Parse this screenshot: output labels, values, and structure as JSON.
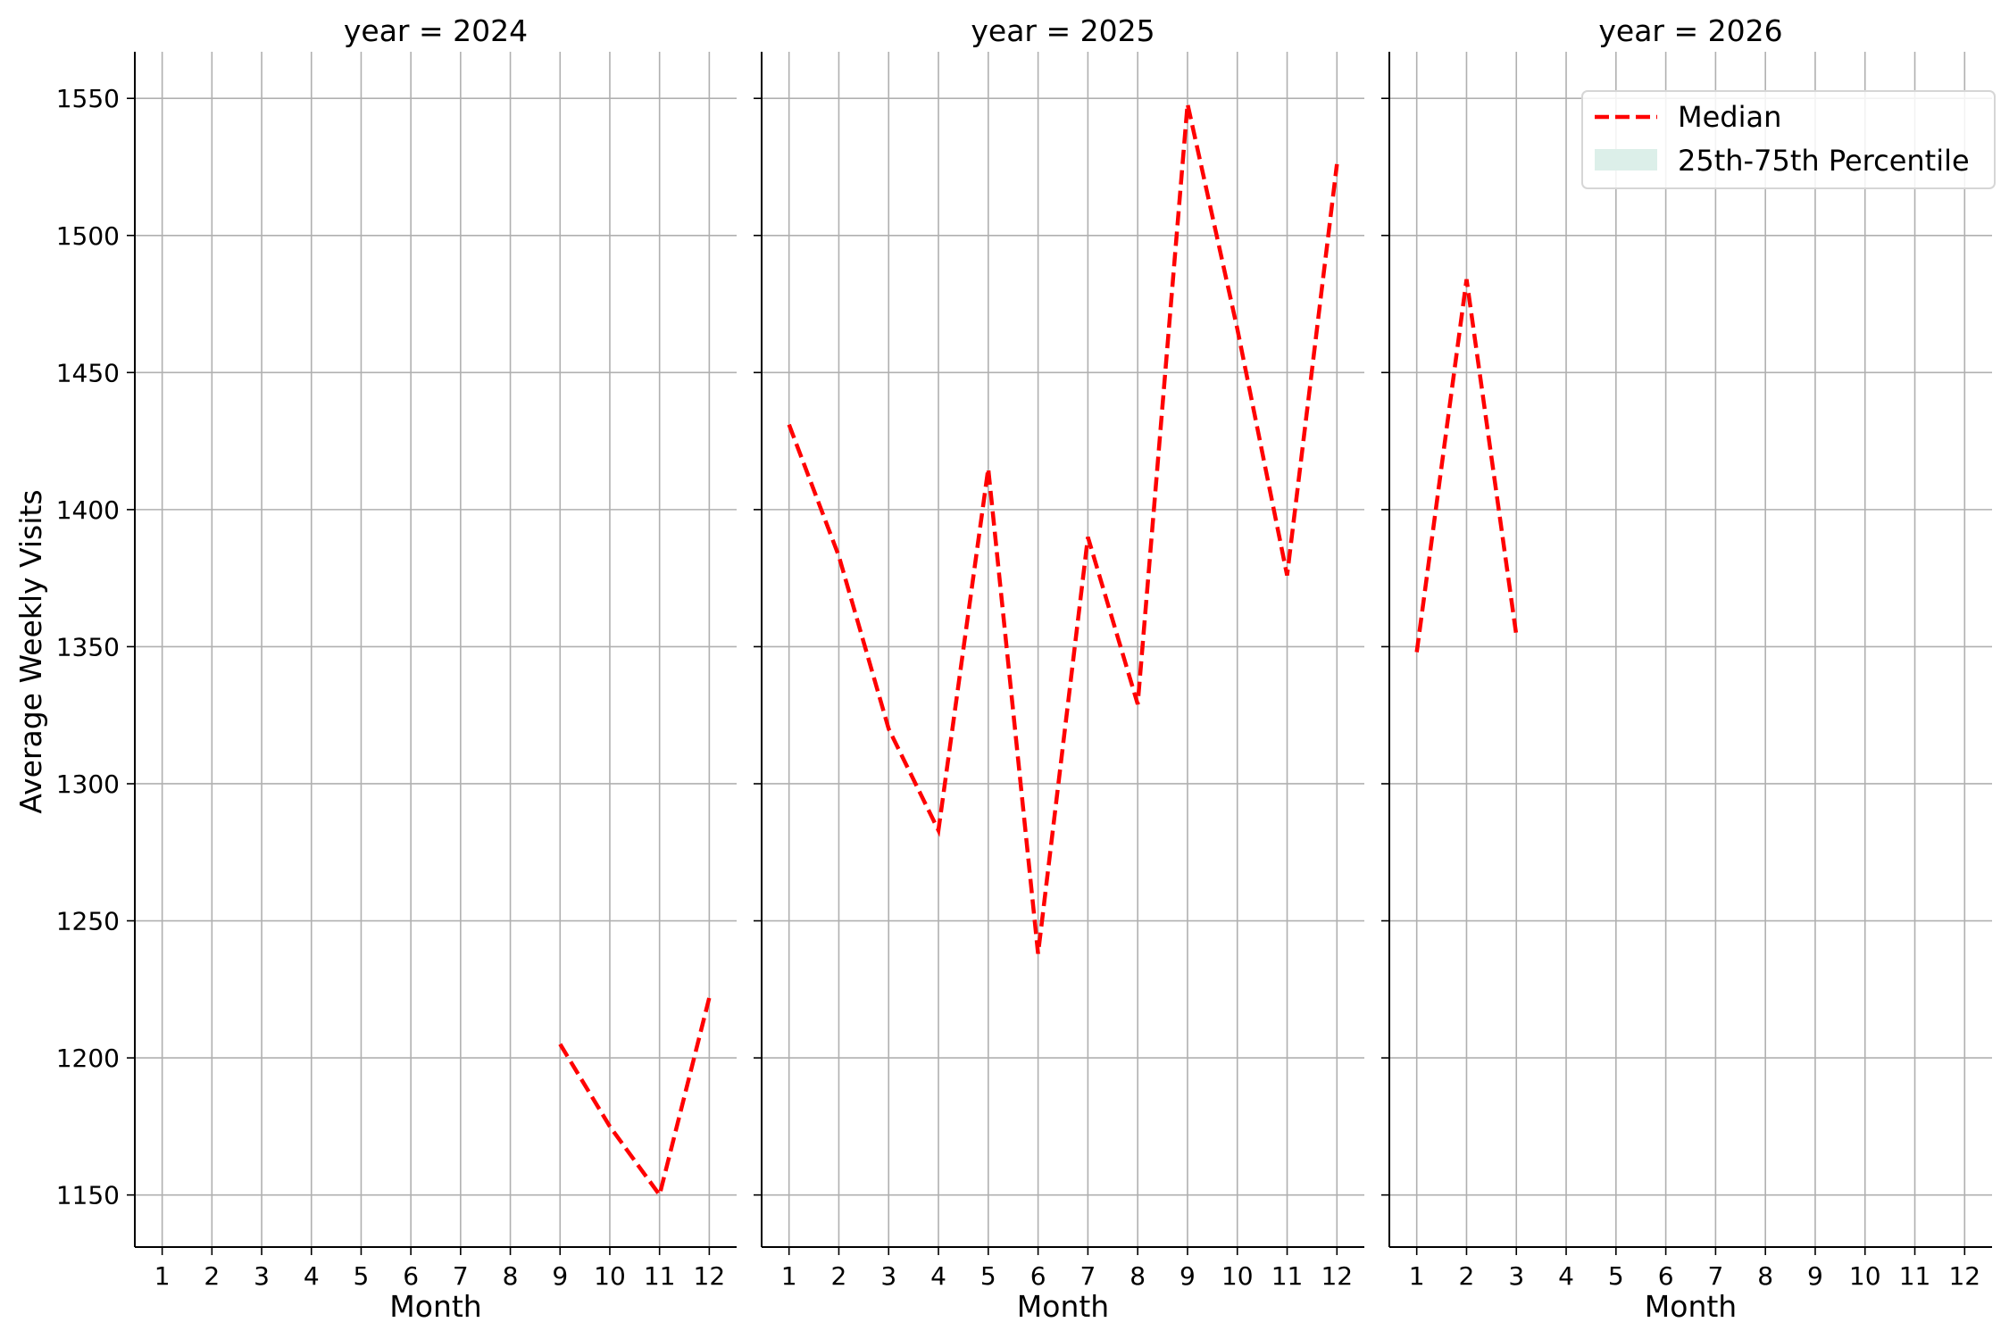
{
  "chart_data": {
    "type": "line",
    "ylabel": "Average Weekly Visits",
    "ylim": [
      1131,
      1567
    ],
    "yticks": [
      1150,
      1200,
      1250,
      1300,
      1350,
      1400,
      1450,
      1500,
      1550
    ],
    "xlim": [
      0.45,
      12.55
    ],
    "xticks": [
      1,
      2,
      3,
      4,
      5,
      6,
      7,
      8,
      9,
      10,
      11,
      12
    ],
    "grid": true,
    "legend": {
      "placement": "top-right",
      "entries": [
        {
          "label": "Median",
          "style": "dashed-line",
          "color": "#ff0000"
        },
        {
          "label": "25th-75th Percentile",
          "style": "patch",
          "color": "#dcefe9"
        }
      ]
    },
    "facets": [
      {
        "title": "year = 2024",
        "xlabel": "Month",
        "series": [
          {
            "x": [
              9,
              10,
              11,
              12
            ],
            "values": [
              1205,
              1175,
              1150,
              1222
            ]
          }
        ]
      },
      {
        "title": "year = 2025",
        "xlabel": "Month",
        "series": [
          {
            "x": [
              1,
              2,
              3,
              4,
              5,
              6,
              7,
              8,
              9,
              10,
              11,
              12
            ],
            "values": [
              1431,
              1383,
              1320,
              1283,
              1415,
              1238,
              1390,
              1329,
              1548,
              1466,
              1376,
              1526
            ]
          }
        ]
      },
      {
        "title": "year = 2026",
        "xlabel": "Month",
        "series": [
          {
            "x": [
              1,
              2,
              3
            ],
            "values": [
              1348,
              1484,
              1354
            ]
          }
        ]
      }
    ],
    "colors": {
      "median_line": "#ff0000",
      "percentile_band": "#dcefe9",
      "grid": "#b0b0b0",
      "axis": "#000000"
    }
  }
}
